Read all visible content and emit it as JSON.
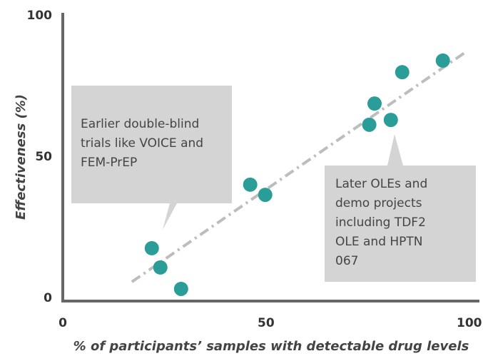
{
  "chart_data": {
    "type": "scatter",
    "x_label": "% of participants’ samples with detectable drug levels",
    "y_label": "Effectiveness (%)",
    "color": "#2a9d99",
    "x": [
      21.9,
      24,
      29.1,
      46.1,
      49.8,
      75.4,
      76.7,
      80.7,
      83.5,
      93.5
    ],
    "values": [
      17.7,
      10.9,
      3.3,
      40.2,
      36.6,
      61.4,
      68.9,
      63.1,
      80,
      84.1
    ],
    "xlim": [
      0,
      102.5
    ],
    "ylim": [
      -1,
      101
    ],
    "xticks": [
      0,
      50,
      100
    ],
    "yticks": [
      0,
      50,
      100
    ],
    "trendline": {
      "x": [
        17,
        99.1
      ],
      "y": [
        5.8,
        87.1
      ],
      "color": "#bdbdbd"
    },
    "annotations": [
      {
        "lines": [
          "Earlier double-blind",
          "trials like VOICE and",
          "FEM-PrEP"
        ]
      },
      {
        "lines": [
          "Later OLEs and",
          "demo projects",
          "including TDF2",
          "OLE and HPTN",
          "067"
        ]
      }
    ]
  }
}
